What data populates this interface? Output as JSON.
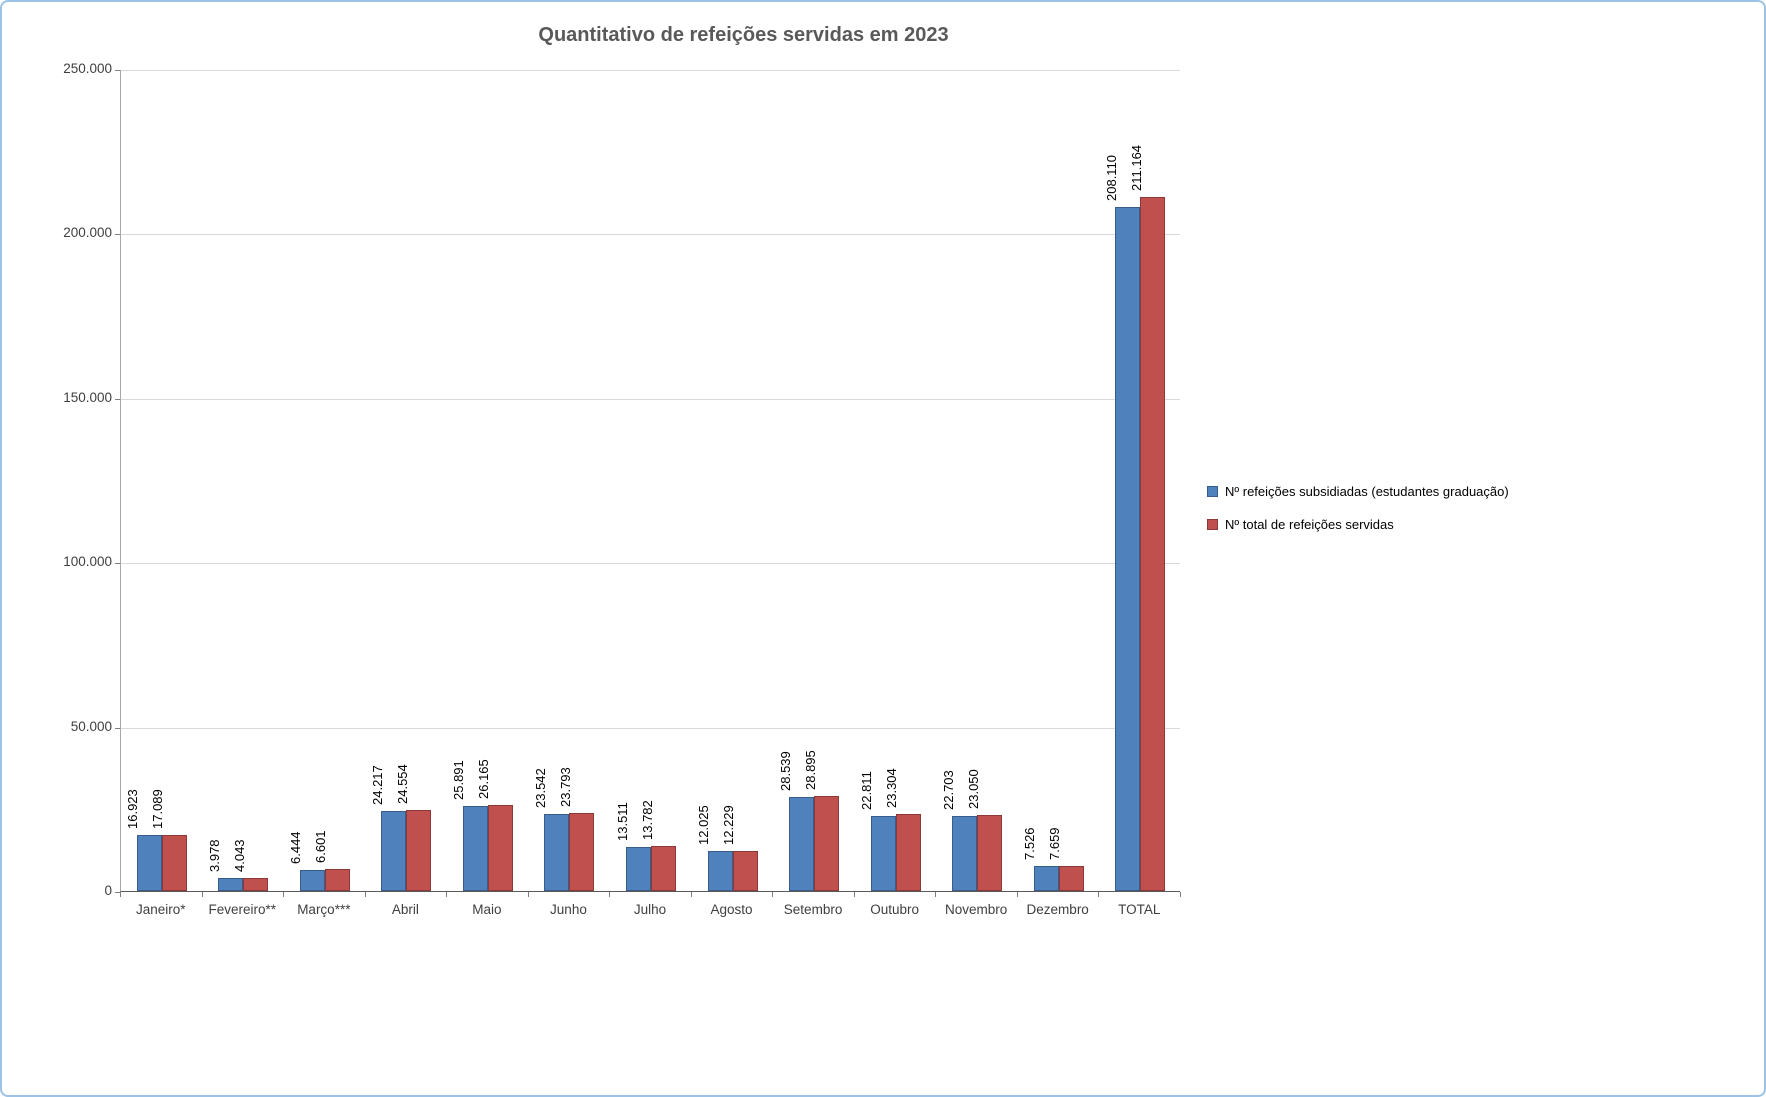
{
  "chart_data": {
    "type": "bar",
    "title": "Quantitativo de refeições servidas em 2023",
    "categories": [
      "Janeiro*",
      "Fevereiro**",
      "Março***",
      "Abril",
      "Maio",
      "Junho",
      "Julho",
      "Agosto",
      "Setembro",
      "Outubro",
      "Novembro",
      "Dezembro",
      "TOTAL"
    ],
    "series": [
      {
        "name": "Nº refeições subsidiadas (estudantes graduação)",
        "color": "#4F81BD",
        "border_color": "#385D8A",
        "values": [
          16923,
          3978,
          6444,
          24217,
          25891,
          23542,
          13511,
          12025,
          28539,
          22811,
          22703,
          7526,
          208110
        ],
        "labels": [
          "16.923",
          "3.978",
          "6.444",
          "24.217",
          "25.891",
          "23.542",
          "13.511",
          "12.025",
          "28.539",
          "22.811",
          "22.703",
          "7.526",
          "208.110"
        ]
      },
      {
        "name": "Nº total de refeições servidas",
        "color": "#C0504D",
        "border_color": "#8C3836",
        "values": [
          17089,
          4043,
          6601,
          24554,
          26165,
          23793,
          13782,
          12229,
          28895,
          23304,
          23050,
          7659,
          211164
        ],
        "labels": [
          "17.089",
          "4.043",
          "6.601",
          "24.554",
          "26.165",
          "23.793",
          "13.782",
          "12.229",
          "28.895",
          "23.304",
          "23.050",
          "7.659",
          "211.164"
        ]
      }
    ],
    "ylim": [
      0,
      250000
    ],
    "ytick_step": 50000,
    "ytick_labels": [
      "0",
      "50.000",
      "100.000",
      "150.000",
      "200.000",
      "250.000"
    ],
    "grid": true,
    "legend_position": "right",
    "data_labels": "rotated-90",
    "title_color": "#595959"
  }
}
